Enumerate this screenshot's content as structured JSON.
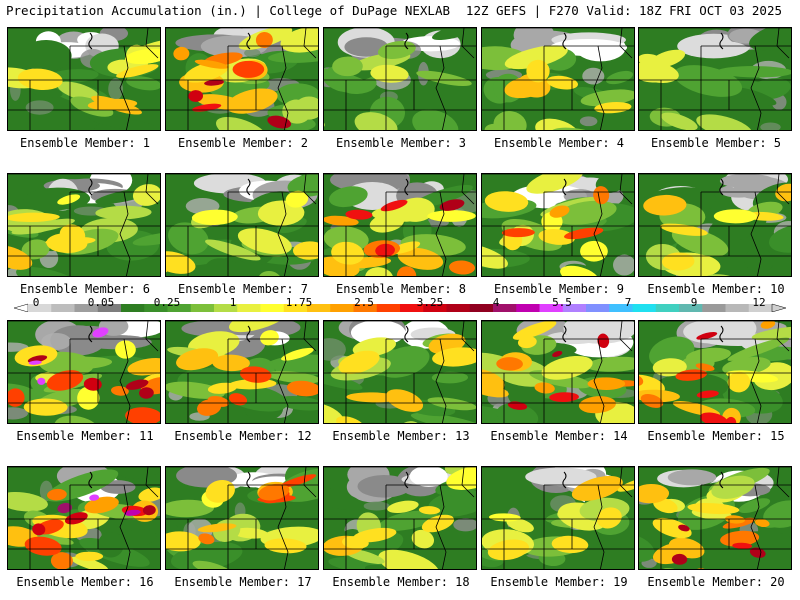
{
  "header": {
    "left": "Precipitation Accumulation (in.) | College of DuPage NEXLAB",
    "right": "12Z GEFS | F270 Valid: 18Z FRI OCT 03 2025"
  },
  "legend": {
    "ticks": [
      "0",
      "0.05",
      "0.25",
      "1",
      "1.75",
      "2.5",
      "3.25",
      "4",
      "5.5",
      "7",
      "9",
      "12"
    ],
    "colors": [
      "#d8d8d8",
      "#bdbdbd",
      "#9e9e9e",
      "#7e7e7e",
      "#2e7d22",
      "#3a8f2a",
      "#4fa332",
      "#7cbf3a",
      "#b4dc46",
      "#e8f040",
      "#ffff30",
      "#ffe020",
      "#ffc010",
      "#ffa000",
      "#ff7800",
      "#ff4000",
      "#f01010",
      "#d00010",
      "#b00018",
      "#900020",
      "#a0106a",
      "#c000b0",
      "#e040ff",
      "#b080ff",
      "#8090ff",
      "#40c0ff",
      "#20e0f0",
      "#40d0c0",
      "#60b8b0",
      "#9a9a9a",
      "#b8b8b8",
      "#d0d0d0"
    ]
  },
  "members": [
    {
      "label": "Ensemble Member: 1",
      "intensity": 0.55
    },
    {
      "label": "Ensemble Member: 2",
      "intensity": 0.85
    },
    {
      "label": "Ensemble Member: 3",
      "intensity": 0.45
    },
    {
      "label": "Ensemble Member: 4",
      "intensity": 0.5
    },
    {
      "label": "Ensemble Member: 5",
      "intensity": 0.45
    },
    {
      "label": "Ensemble Member: 6",
      "intensity": 0.55
    },
    {
      "label": "Ensemble Member: 7",
      "intensity": 0.5
    },
    {
      "label": "Ensemble Member: 8",
      "intensity": 0.8
    },
    {
      "label": "Ensemble Member: 9",
      "intensity": 0.65
    },
    {
      "label": "Ensemble Member: 10",
      "intensity": 0.5
    },
    {
      "label": "Ensemble Member: 11",
      "intensity": 0.95
    },
    {
      "label": "Ensemble Member: 12",
      "intensity": 0.75
    },
    {
      "label": "Ensemble Member: 13",
      "intensity": 0.6
    },
    {
      "label": "Ensemble Member: 14",
      "intensity": 0.85
    },
    {
      "label": "Ensemble Member: 15",
      "intensity": 0.9
    },
    {
      "label": "Ensemble Member: 16",
      "intensity": 0.95
    },
    {
      "label": "Ensemble Member: 17",
      "intensity": 0.75
    },
    {
      "label": "Ensemble Member: 18",
      "intensity": 0.55
    },
    {
      "label": "Ensemble Member: 19",
      "intensity": 0.6
    },
    {
      "label": "Ensemble Member: 20",
      "intensity": 0.8
    }
  ]
}
